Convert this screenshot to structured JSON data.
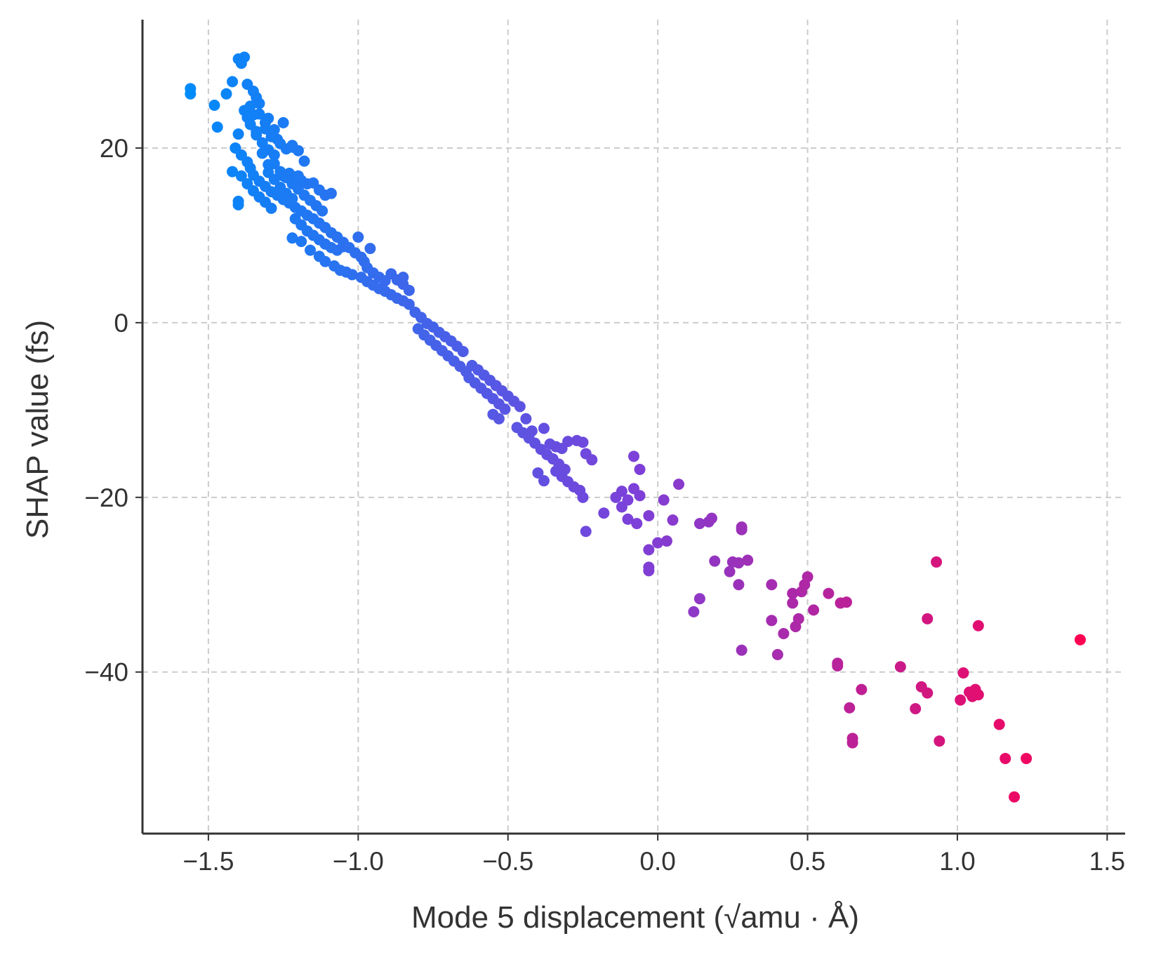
{
  "chart_data": {
    "type": "scatter",
    "title": "",
    "xlabel": "Mode 5 displacement (√amu · Å)",
    "ylabel": "SHAP value (fs)",
    "xlim": [
      -1.72,
      1.56
    ],
    "ylim": [
      -58.5,
      34.7
    ],
    "xticks": [
      -1.5,
      -1.0,
      -0.5,
      0.0,
      0.5,
      1.0,
      1.5
    ],
    "xtick_labels": [
      "−1.5",
      "−1.0",
      "−0.5",
      "0.0",
      "0.5",
      "1.0",
      "1.5"
    ],
    "yticks": [
      20,
      0,
      -20,
      -40
    ],
    "ytick_labels": [
      "20",
      "0",
      "−20",
      "−40"
    ],
    "grid": true,
    "legend": "none",
    "color_scale": {
      "low": "#008bfb",
      "mid": "#7d40d9",
      "high": "#ff0052",
      "encodes": "x value"
    },
    "points": [
      [
        -1.56,
        26.8
      ],
      [
        -1.56,
        26.2
      ],
      [
        -1.48,
        24.9
      ],
      [
        -1.47,
        22.4
      ],
      [
        -1.44,
        26.2
      ],
      [
        -1.42,
        27.6
      ],
      [
        -1.4,
        30.2
      ],
      [
        -1.38,
        30.4
      ],
      [
        -1.39,
        29.7
      ],
      [
        -1.37,
        27.3
      ],
      [
        -1.35,
        26.5
      ],
      [
        -1.34,
        25.8
      ],
      [
        -1.36,
        24.8
      ],
      [
        -1.33,
        23.9
      ],
      [
        -1.31,
        22.9
      ],
      [
        -1.3,
        23.4
      ],
      [
        -1.28,
        22.1
      ],
      [
        -1.27,
        21.0
      ],
      [
        -1.38,
        24.3
      ],
      [
        -1.36,
        22.7
      ],
      [
        -1.34,
        21.5
      ],
      [
        -1.32,
        20.6
      ],
      [
        -1.3,
        19.8
      ],
      [
        -1.28,
        19.2
      ],
      [
        -1.25,
        22.9
      ],
      [
        -1.22,
        20.1
      ],
      [
        -1.2,
        19.7
      ],
      [
        -1.4,
        21.6
      ],
      [
        -1.41,
        20.0
      ],
      [
        -1.39,
        19.2
      ],
      [
        -1.37,
        18.4
      ],
      [
        -1.36,
        17.7
      ],
      [
        -1.35,
        16.9
      ],
      [
        -1.33,
        16.2
      ],
      [
        -1.31,
        15.6
      ],
      [
        -1.29,
        15.0
      ],
      [
        -1.27,
        14.6
      ],
      [
        -1.25,
        14.1
      ],
      [
        -1.23,
        13.7
      ],
      [
        -1.21,
        13.2
      ],
      [
        -1.19,
        12.8
      ],
      [
        -1.17,
        12.3
      ],
      [
        -1.15,
        11.9
      ],
      [
        -1.13,
        11.4
      ],
      [
        -1.11,
        10.9
      ],
      [
        -1.42,
        17.3
      ],
      [
        -1.39,
        16.8
      ],
      [
        -1.37,
        15.9
      ],
      [
        -1.35,
        15.1
      ],
      [
        -1.33,
        14.4
      ],
      [
        -1.31,
        13.8
      ],
      [
        -1.29,
        13.1
      ],
      [
        -1.4,
        13.9
      ],
      [
        -1.4,
        13.5
      ],
      [
        -1.28,
        18.2
      ],
      [
        -1.26,
        17.3
      ],
      [
        -1.24,
        16.6
      ],
      [
        -1.22,
        15.9
      ],
      [
        -1.2,
        15.3
      ],
      [
        -1.18,
        14.6
      ],
      [
        -1.16,
        14.0
      ],
      [
        -1.14,
        13.4
      ],
      [
        -1.12,
        12.8
      ],
      [
        -1.25,
        16.8
      ],
      [
        -1.23,
        17.1
      ],
      [
        -1.21,
        16.7
      ],
      [
        -1.19,
        16.3
      ],
      [
        -1.17,
        15.9
      ],
      [
        -1.15,
        16.0
      ],
      [
        -1.13,
        15.2
      ],
      [
        -1.11,
        14.6
      ],
      [
        -1.09,
        14.8
      ],
      [
        -1.21,
        11.9
      ],
      [
        -1.19,
        11.2
      ],
      [
        -1.17,
        10.5
      ],
      [
        -1.15,
        10.0
      ],
      [
        -1.13,
        9.5
      ],
      [
        -1.11,
        9.0
      ],
      [
        -1.09,
        8.6
      ],
      [
        -1.07,
        8.3
      ],
      [
        -1.05,
        8.7
      ],
      [
        -1.22,
        9.7
      ],
      [
        -1.19,
        9.3
      ],
      [
        -1.16,
        8.3
      ],
      [
        -1.13,
        7.6
      ],
      [
        -1.11,
        7.0
      ],
      [
        -1.08,
        6.5
      ],
      [
        -1.06,
        6.0
      ],
      [
        -1.04,
        5.8
      ],
      [
        -1.02,
        5.5
      ],
      [
        -1.09,
        10.3
      ],
      [
        -1.07,
        9.8
      ],
      [
        -1.05,
        9.2
      ],
      [
        -1.03,
        8.6
      ],
      [
        -1.01,
        8.0
      ],
      [
        -0.99,
        7.5
      ],
      [
        -1.0,
        9.8
      ],
      [
        -0.96,
        8.5
      ],
      [
        -0.98,
        7.0
      ],
      [
        -0.99,
        5.2
      ],
      [
        -0.97,
        4.7
      ],
      [
        -0.95,
        4.3
      ],
      [
        -0.93,
        3.9
      ],
      [
        -0.91,
        3.6
      ],
      [
        -0.89,
        3.2
      ],
      [
        -0.87,
        2.8
      ],
      [
        -0.85,
        2.5
      ],
      [
        -0.83,
        2.1
      ],
      [
        -0.97,
        6.3
      ],
      [
        -0.95,
        5.7
      ],
      [
        -0.93,
        5.2
      ],
      [
        -0.91,
        4.8
      ],
      [
        -0.89,
        5.6
      ],
      [
        -0.87,
        4.9
      ],
      [
        -0.85,
        4.4
      ],
      [
        -0.83,
        3.7
      ],
      [
        -0.85,
        5.2
      ],
      [
        -1.31,
        22.2
      ],
      [
        -1.29,
        21.3
      ],
      [
        -1.26,
        20.5
      ],
      [
        -1.24,
        19.9
      ],
      [
        -1.22,
        20.3
      ],
      [
        -1.18,
        18.5
      ],
      [
        -1.33,
        25.1
      ],
      [
        -1.35,
        23.8
      ],
      [
        -1.3,
        18.1
      ],
      [
        -1.37,
        23.5
      ],
      [
        -1.34,
        21.9
      ],
      [
        -1.32,
        19.4
      ],
      [
        -1.3,
        17.2
      ],
      [
        -1.28,
        16.4
      ],
      [
        -1.26,
        15.5
      ],
      [
        -1.24,
        14.8
      ],
      [
        -1.22,
        14.2
      ],
      [
        -1.2,
        16.8
      ],
      [
        -0.81,
        1.2
      ],
      [
        -0.79,
        0.6
      ],
      [
        -0.77,
        -0.1
      ],
      [
        -0.75,
        -0.5
      ],
      [
        -0.73,
        -1.1
      ],
      [
        -0.71,
        -1.6
      ],
      [
        -0.69,
        -2.1
      ],
      [
        -0.67,
        -2.7
      ],
      [
        -0.65,
        -3.3
      ],
      [
        -0.8,
        -0.7
      ],
      [
        -0.78,
        -1.4
      ],
      [
        -0.76,
        -2.0
      ],
      [
        -0.74,
        -2.6
      ],
      [
        -0.72,
        -3.2
      ],
      [
        -0.7,
        -3.8
      ],
      [
        -0.68,
        -4.4
      ],
      [
        -0.66,
        -5.0
      ],
      [
        -0.64,
        -5.6
      ],
      [
        -0.62,
        -4.9
      ],
      [
        -0.6,
        -5.4
      ],
      [
        -0.58,
        -6.0
      ],
      [
        -0.56,
        -6.6
      ],
      [
        -0.54,
        -7.2
      ],
      [
        -0.52,
        -7.8
      ],
      [
        -0.5,
        -8.4
      ],
      [
        -0.48,
        -9.0
      ],
      [
        -0.46,
        -9.6
      ],
      [
        -0.63,
        -6.3
      ],
      [
        -0.61,
        -6.9
      ],
      [
        -0.59,
        -7.5
      ],
      [
        -0.57,
        -8.1
      ],
      [
        -0.55,
        -8.7
      ],
      [
        -0.53,
        -9.3
      ],
      [
        -0.51,
        -9.9
      ],
      [
        -0.55,
        -10.5
      ],
      [
        -0.53,
        -11.0
      ],
      [
        -0.47,
        -12.0
      ],
      [
        -0.45,
        -12.6
      ],
      [
        -0.43,
        -13.2
      ],
      [
        -0.41,
        -13.8
      ],
      [
        -0.39,
        -14.5
      ],
      [
        -0.37,
        -15.1
      ],
      [
        -0.35,
        -15.6
      ],
      [
        -0.33,
        -16.2
      ],
      [
        -0.31,
        -16.8
      ],
      [
        -0.44,
        -11.0
      ],
      [
        -0.42,
        -12.4
      ],
      [
        -0.38,
        -12.1
      ],
      [
        -0.36,
        -13.9
      ],
      [
        -0.34,
        -14.2
      ],
      [
        -0.32,
        -14.4
      ],
      [
        -0.3,
        -13.6
      ],
      [
        -0.27,
        -13.5
      ],
      [
        -0.25,
        -13.7
      ],
      [
        -0.4,
        -17.2
      ],
      [
        -0.38,
        -18.1
      ],
      [
        -0.34,
        -17.0
      ],
      [
        -0.32,
        -17.6
      ],
      [
        -0.3,
        -18.2
      ],
      [
        -0.28,
        -18.8
      ],
      [
        -0.26,
        -19.2
      ],
      [
        -0.24,
        -15.0
      ],
      [
        -0.22,
        -15.7
      ],
      [
        -0.25,
        -20.0
      ],
      [
        -0.24,
        -23.9
      ],
      [
        -0.18,
        -21.8
      ],
      [
        -0.14,
        -20.0
      ],
      [
        -0.12,
        -19.3
      ],
      [
        -0.1,
        -20.3
      ],
      [
        -0.08,
        -15.3
      ],
      [
        -0.06,
        -16.8
      ],
      [
        -0.07,
        -23.0
      ],
      [
        -0.12,
        -21.1
      ],
      [
        -0.1,
        -22.5
      ],
      [
        -0.08,
        -19.0
      ],
      [
        -0.06,
        -19.8
      ],
      [
        -0.03,
        -22.1
      ],
      [
        -0.03,
        -26.0
      ],
      [
        -0.03,
        -28.0
      ],
      [
        -0.03,
        -28.4
      ],
      [
        0.0,
        -25.2
      ],
      [
        0.02,
        -20.3
      ],
      [
        0.03,
        -25.0
      ],
      [
        0.05,
        -22.6
      ],
      [
        0.07,
        -18.5
      ],
      [
        0.14,
        -23.0
      ],
      [
        0.17,
        -22.8
      ],
      [
        0.18,
        -22.4
      ],
      [
        0.19,
        -27.3
      ],
      [
        0.12,
        -33.1
      ],
      [
        0.14,
        -31.6
      ],
      [
        0.24,
        -28.5
      ],
      [
        0.25,
        -27.4
      ],
      [
        0.27,
        -27.5
      ],
      [
        0.28,
        -23.4
      ],
      [
        0.28,
        -23.7
      ],
      [
        0.3,
        -27.2
      ],
      [
        0.27,
        -30.0
      ],
      [
        0.28,
        -37.5
      ],
      [
        0.38,
        -30.0
      ],
      [
        0.38,
        -34.1
      ],
      [
        0.4,
        -38.0
      ],
      [
        0.42,
        -35.6
      ],
      [
        0.45,
        -32.1
      ],
      [
        0.45,
        -31.0
      ],
      [
        0.46,
        -34.8
      ],
      [
        0.47,
        -33.9
      ],
      [
        0.48,
        -30.8
      ],
      [
        0.49,
        -30.0
      ],
      [
        0.5,
        -29.1
      ],
      [
        0.52,
        -32.9
      ],
      [
        0.57,
        -31.0
      ],
      [
        0.6,
        -39.0
      ],
      [
        0.6,
        -39.3
      ],
      [
        0.61,
        -32.1
      ],
      [
        0.63,
        -32.0
      ],
      [
        0.64,
        -44.1
      ],
      [
        0.65,
        -47.6
      ],
      [
        0.65,
        -48.1
      ],
      [
        0.68,
        -42.0
      ],
      [
        0.81,
        -39.4
      ],
      [
        0.86,
        -44.2
      ],
      [
        0.88,
        -41.7
      ],
      [
        0.9,
        -33.9
      ],
      [
        0.9,
        -42.4
      ],
      [
        0.93,
        -27.4
      ],
      [
        0.94,
        -47.9
      ],
      [
        1.01,
        -43.2
      ],
      [
        1.02,
        -40.1
      ],
      [
        1.04,
        -42.3
      ],
      [
        1.05,
        -42.8
      ],
      [
        1.06,
        -42.0
      ],
      [
        1.07,
        -34.7
      ],
      [
        1.07,
        -42.6
      ],
      [
        1.14,
        -46.0
      ],
      [
        1.16,
        -49.9
      ],
      [
        1.19,
        -54.3
      ],
      [
        1.23,
        -49.9
      ],
      [
        1.41,
        -36.3
      ]
    ]
  }
}
